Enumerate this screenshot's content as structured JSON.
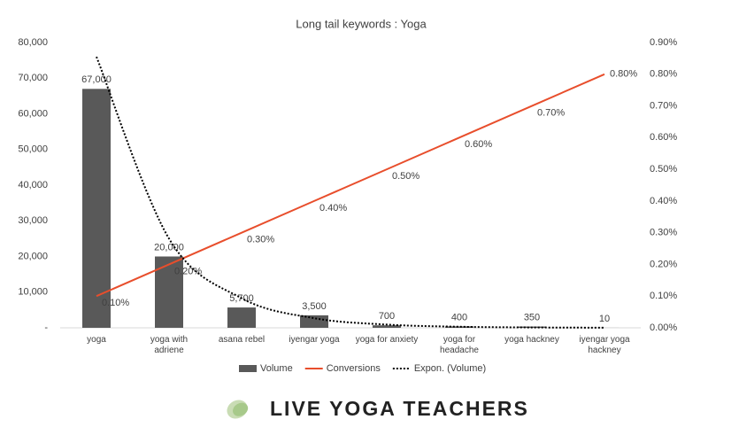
{
  "chart_data": {
    "type": "bar-line",
    "title": "Long tail keywords : Yoga",
    "categories": [
      "yoga",
      "yoga with adriene",
      "asana rebel",
      "iyengar yoga",
      "yoga for anxiety",
      "yoga for headache",
      "yoga hackney",
      "iyengar yoga hackney"
    ],
    "series": [
      {
        "name": "Volume",
        "type": "bar",
        "color": "#595959",
        "values": [
          67000,
          20000,
          5700,
          3500,
          700,
          400,
          350,
          10
        ],
        "value_labels": [
          "67,000",
          "20,000",
          "5,700",
          "3,500",
          "700",
          "400",
          "350",
          "10"
        ]
      },
      {
        "name": "Conversions",
        "type": "line",
        "axis": "y2",
        "color": "#e84e2c",
        "values": [
          0.1,
          0.2,
          0.3,
          0.4,
          0.5,
          0.6,
          0.7,
          0.8
        ],
        "value_labels": [
          "0.10%",
          "0.20%",
          "0.30%",
          "0.40%",
          "0.50%",
          "0.60%",
          "0.70%",
          "0.80%"
        ]
      },
      {
        "name": "Expon. (Volume)",
        "type": "trend",
        "color": "#000000",
        "values": [
          76000,
          25000,
          8300,
          2700,
          900,
          300,
          100,
          33
        ]
      }
    ],
    "ylim": [
      0,
      80000
    ],
    "yticks": [
      {
        "value": 0,
        "label": "-"
      },
      {
        "value": 10000,
        "label": "10,000"
      },
      {
        "value": 20000,
        "label": "20,000"
      },
      {
        "value": 30000,
        "label": "30,000"
      },
      {
        "value": 40000,
        "label": "40,000"
      },
      {
        "value": 50000,
        "label": "50,000"
      },
      {
        "value": 60000,
        "label": "60,000"
      },
      {
        "value": 70000,
        "label": "70,000"
      },
      {
        "value": 80000,
        "label": "80,000"
      }
    ],
    "y2lim": [
      0,
      0.9
    ],
    "y2ticks": [
      {
        "value": 0,
        "label": "0.00%"
      },
      {
        "value": 0.1,
        "label": "0.10%"
      },
      {
        "value": 0.2,
        "label": "0.20%"
      },
      {
        "value": 0.3,
        "label": "0.30%"
      },
      {
        "value": 0.4,
        "label": "0.40%"
      },
      {
        "value": 0.5,
        "label": "0.50%"
      },
      {
        "value": 0.6,
        "label": "0.60%"
      },
      {
        "value": 0.7,
        "label": "0.70%"
      },
      {
        "value": 0.8,
        "label": "0.80%"
      },
      {
        "value": 0.9,
        "label": "0.90%"
      }
    ],
    "grid": false,
    "legend": "bottom"
  },
  "brand": "LIVE YOGA TEACHERS"
}
